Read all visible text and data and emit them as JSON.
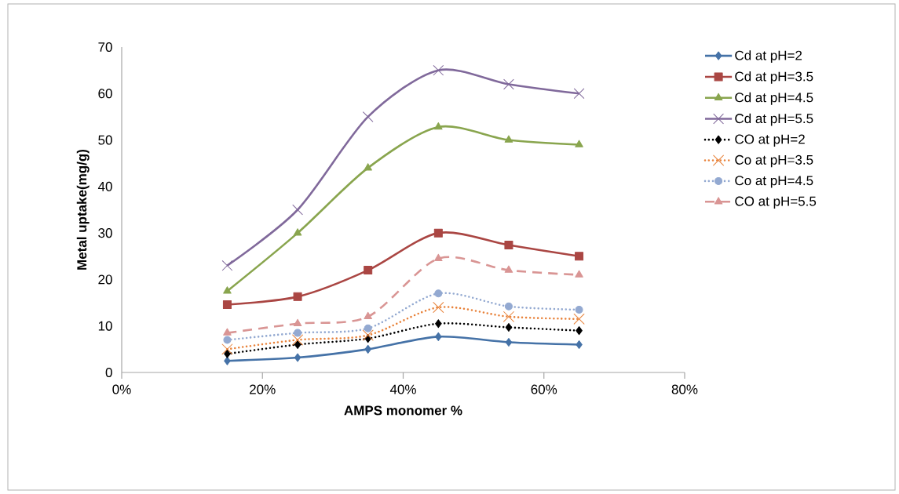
{
  "chart_data": {
    "type": "line",
    "xlabel": "AMPS monomer %",
    "ylabel": "Metal uptake(mg/g)",
    "x": [
      15,
      25,
      35,
      45,
      55,
      65
    ],
    "xlim": [
      0,
      80
    ],
    "xticks": [
      {
        "value": 0,
        "label": "0%"
      },
      {
        "value": 20,
        "label": "20%"
      },
      {
        "value": 40,
        "label": "40%"
      },
      {
        "value": 60,
        "label": "60%"
      },
      {
        "value": 80,
        "label": "80%"
      }
    ],
    "ylim": [
      0,
      70
    ],
    "yticks": [
      0,
      10,
      20,
      30,
      40,
      50,
      60,
      70
    ],
    "grid": false,
    "legend": "right",
    "series": [
      {
        "name": "Cd at pH=2",
        "color": "#4572a7",
        "marker": "diamond",
        "line_style": "solid",
        "values": [
          2.5,
          3.2,
          5,
          7.7,
          6.5,
          6
        ]
      },
      {
        "name": "Cd at pH=3.5",
        "color": "#aa4643",
        "marker": "square",
        "line_style": "solid",
        "values": [
          14.6,
          16.3,
          22,
          30,
          27.4,
          25
        ]
      },
      {
        "name": "Cd at pH=4.5",
        "color": "#89a54e",
        "marker": "triangle",
        "line_style": "solid",
        "values": [
          17.5,
          30,
          44,
          52.8,
          50,
          49
        ]
      },
      {
        "name": "Cd at pH=5.5",
        "color": "#80699b",
        "marker": "cross",
        "line_style": "solid",
        "values": [
          23,
          35,
          55,
          65,
          62,
          60
        ]
      },
      {
        "name": "CO at pH=2",
        "color": "#000000",
        "marker": "diamond",
        "line_style": "dotted",
        "values": [
          4,
          6,
          7.3,
          10.5,
          9.7,
          9
        ]
      },
      {
        "name": "Co at pH=3.5",
        "color": "#e8823a",
        "marker": "cross",
        "line_style": "dotted",
        "values": [
          5,
          7,
          8,
          14,
          12,
          11.5
        ]
      },
      {
        "name": "Co at pH=4.5",
        "color": "#93a9d1",
        "marker": "circle",
        "line_style": "dotted",
        "values": [
          7,
          8.5,
          9.5,
          17,
          14.2,
          13.5
        ]
      },
      {
        "name": "CO at pH=5.5",
        "color": "#d99594",
        "marker": "triangle",
        "line_style": "dashed",
        "values": [
          8.5,
          10.5,
          12,
          24.5,
          22,
          21
        ]
      }
    ]
  }
}
